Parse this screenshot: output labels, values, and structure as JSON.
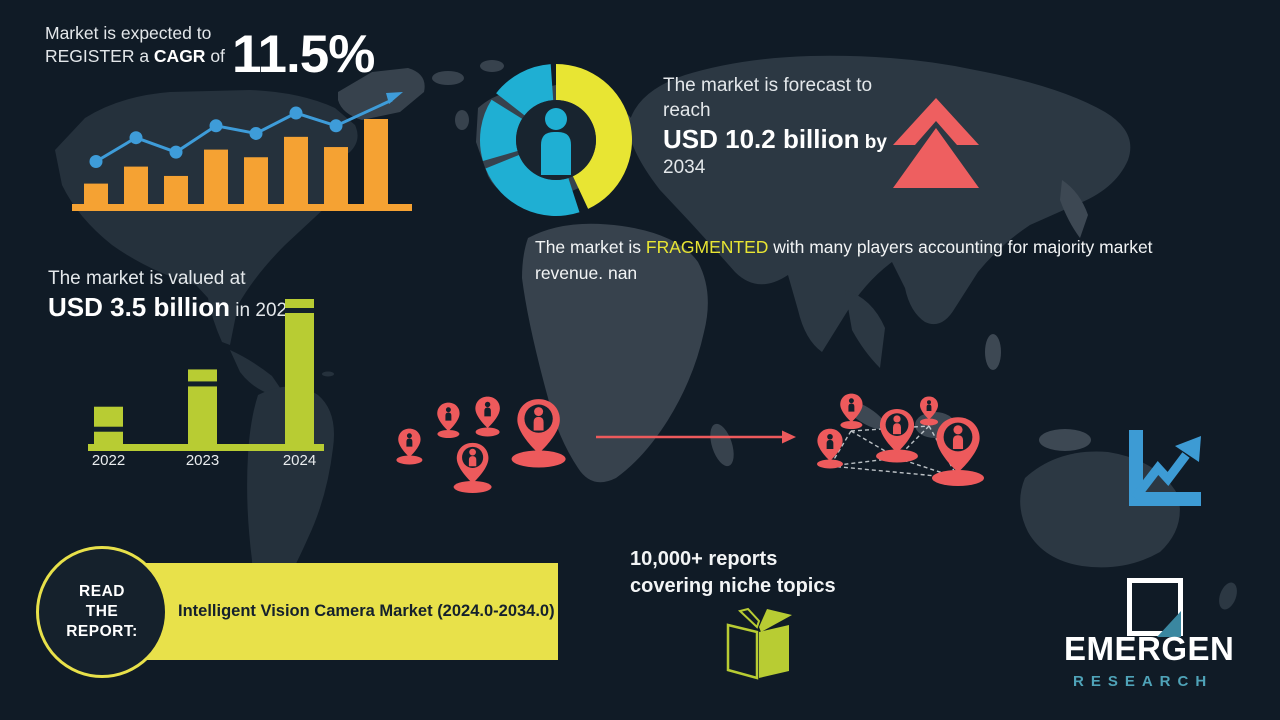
{
  "colors": {
    "background": "#101B26",
    "map_dark": "#25313C",
    "map_mid": "#2C3843",
    "map_light": "#37424D",
    "orange": "#F5A233",
    "blue": "#3E9CD9",
    "teal": "#1FAFD3",
    "yellow": "#E8E533",
    "banner_yellow": "#E8E14A",
    "green": "#B8CC33",
    "red": "#ED5A5C",
    "logo_teal": "#4FA3B8",
    "text_light": "#E6E9EB"
  },
  "icons": {
    "donut_center": "person-icon",
    "forecast": "double-chevron-up-icon",
    "expansion_left": "map-pin-person-icons",
    "expansion_right": "map-pin-network-icons",
    "growth": "line-chart-arrow-icon",
    "reports": "open-book-icon",
    "logo_mark": "square-chart-logo-icon"
  },
  "cagr": {
    "line1": "Market is expected to",
    "line2_pre": "REGISTER a ",
    "line2_bold": "CAGR",
    "line2_post": " of",
    "value": "11.5%"
  },
  "forecast": {
    "line1": "The market is forecast to",
    "line2": "reach",
    "value": "USD 10.2 billion",
    "by": " by",
    "year": "2034"
  },
  "fragmented": {
    "pre": "The market is ",
    "highlight": "FRAGMENTED",
    "post": " with many players accounting for majority market revenue. nan"
  },
  "valuation": {
    "line1": "The market is valued at",
    "value": "USD 3.5 billion",
    "suffix": " in 2024"
  },
  "report": {
    "circle_line1": "READ",
    "circle_line2": "THE",
    "circle_line3": "REPORT:",
    "banner_text": "Intelligent Vision Camera Market (2024.0-2034.0)"
  },
  "promo": {
    "line1": "10,000+ reports",
    "line2": "covering niche topics"
  },
  "logo": {
    "title": "EMERGEN",
    "subtitle": "RESEARCH"
  },
  "chart_data": [
    {
      "id": "cagr_growth_trend",
      "type": "bar",
      "purpose": "decorative growth bar chart with line overlay under the CAGR headline",
      "values_relative": [
        24,
        44,
        33,
        64,
        55,
        79,
        67,
        100
      ],
      "line_overlay_relative": [
        50,
        78,
        61,
        92,
        83,
        107,
        92
      ],
      "bar_color": "#F5A233",
      "line_color": "#3E9CD9",
      "ends_with_arrow": true
    },
    {
      "id": "market_valuation",
      "type": "bar",
      "categories": [
        "2022",
        "2023",
        "2024"
      ],
      "values_usd_billion": [
        0.9,
        1.8,
        3.5
      ],
      "labeled_value": "USD 3.5 billion in 2024",
      "bar_color": "#B8CC33",
      "stripe_color": "#12202B"
    },
    {
      "id": "market_share_donut",
      "type": "pie",
      "purpose": "decorative fragmented-market donut, one large yellow segment and three teal segments",
      "segments": [
        {
          "color": "#E8E533",
          "start_deg": 0,
          "end_deg": 155
        },
        {
          "color": "#1FAFD3",
          "start_deg": 162,
          "end_deg": 248
        },
        {
          "color": "#1FAFD3",
          "start_deg": 254,
          "end_deg": 302
        },
        {
          "color": "#1FAFD3",
          "start_deg": 308,
          "end_deg": 356
        }
      ],
      "center_icon": "person"
    }
  ]
}
